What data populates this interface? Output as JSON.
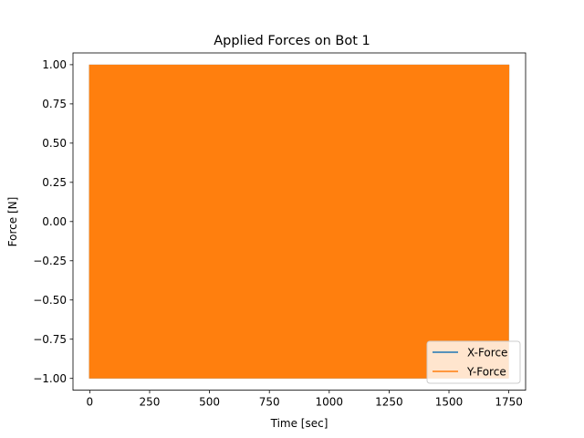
{
  "chart_data": {
    "type": "line",
    "title": "Applied Forces on Bot 1",
    "xlabel": "Time [sec]",
    "ylabel": "Force [N]",
    "xlim": [
      -70,
      1820
    ],
    "ylim": [
      -1.075,
      1.075
    ],
    "xticks": [
      0,
      250,
      500,
      750,
      1000,
      1250,
      1500,
      1750
    ],
    "yticks": [
      -1.0,
      -0.75,
      -0.5,
      -0.25,
      0.0,
      0.25,
      0.5,
      0.75,
      1.0
    ],
    "xtick_labels": [
      "0",
      "250",
      "500",
      "750",
      "1000",
      "1250",
      "1500",
      "1750"
    ],
    "ytick_labels": [
      "−1.00",
      "−0.75",
      "−0.50",
      "−0.25",
      "0.00",
      "0.25",
      "0.50",
      "0.75",
      "1.00"
    ],
    "grid": false,
    "legend_position": "lower-right",
    "series": [
      {
        "name": "X-Force",
        "color": "#1f77b4",
        "x_range": [
          0,
          1750
        ],
        "value_range": [
          -1.0,
          1.0
        ],
        "pattern": "rapid oscillation between -1 and 1"
      },
      {
        "name": "Y-Force",
        "color": "#ff7f0e",
        "x_range": [
          0,
          1750
        ],
        "value_range": [
          -1.0,
          1.0
        ],
        "pattern": "rapid oscillation between -1 and 1"
      }
    ]
  }
}
